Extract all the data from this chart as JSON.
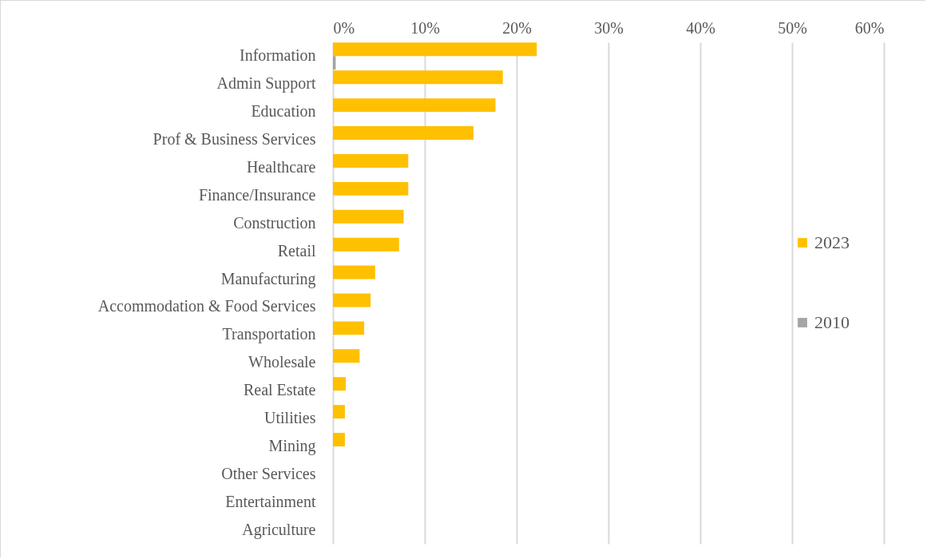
{
  "chart_data": {
    "type": "bar",
    "orientation": "horizontal",
    "categories": [
      "Information",
      "Admin Support",
      "Education",
      "Prof & Business Services",
      "Healthcare",
      "Finance/Insurance",
      "Construction",
      "Retail",
      "Manufacturing",
      "Accommodation & Food Services",
      "Transportation",
      "Wholesale",
      "Real Estate",
      "Utilities",
      "Mining",
      "Other Services",
      "Entertainment",
      "Agriculture"
    ],
    "series": [
      {
        "name": "2023",
        "color": "#ffc000",
        "values": [
          22.2,
          18.5,
          17.7,
          15.3,
          8.2,
          8.2,
          7.7,
          7.2,
          4.6,
          4.1,
          3.4,
          2.9,
          1.4,
          1.3,
          1.3,
          0,
          0,
          0
        ]
      },
      {
        "name": "2010",
        "color": "#a5a5a5",
        "values": [
          0.3,
          0,
          0,
          0,
          0,
          0,
          0,
          0,
          0,
          0,
          0,
          0,
          0,
          0,
          0,
          0,
          0,
          0
        ]
      }
    ],
    "xlim": [
      0,
      60
    ],
    "xticks": [
      {
        "value": 0,
        "label": "0%"
      },
      {
        "value": 10,
        "label": "10%"
      },
      {
        "value": 20,
        "label": "20%"
      },
      {
        "value": 30,
        "label": "30%"
      },
      {
        "value": 40,
        "label": "40%"
      },
      {
        "value": 50,
        "label": "50%"
      },
      {
        "value": 60,
        "label": "60%"
      }
    ],
    "grid": "x",
    "legend": "right"
  }
}
